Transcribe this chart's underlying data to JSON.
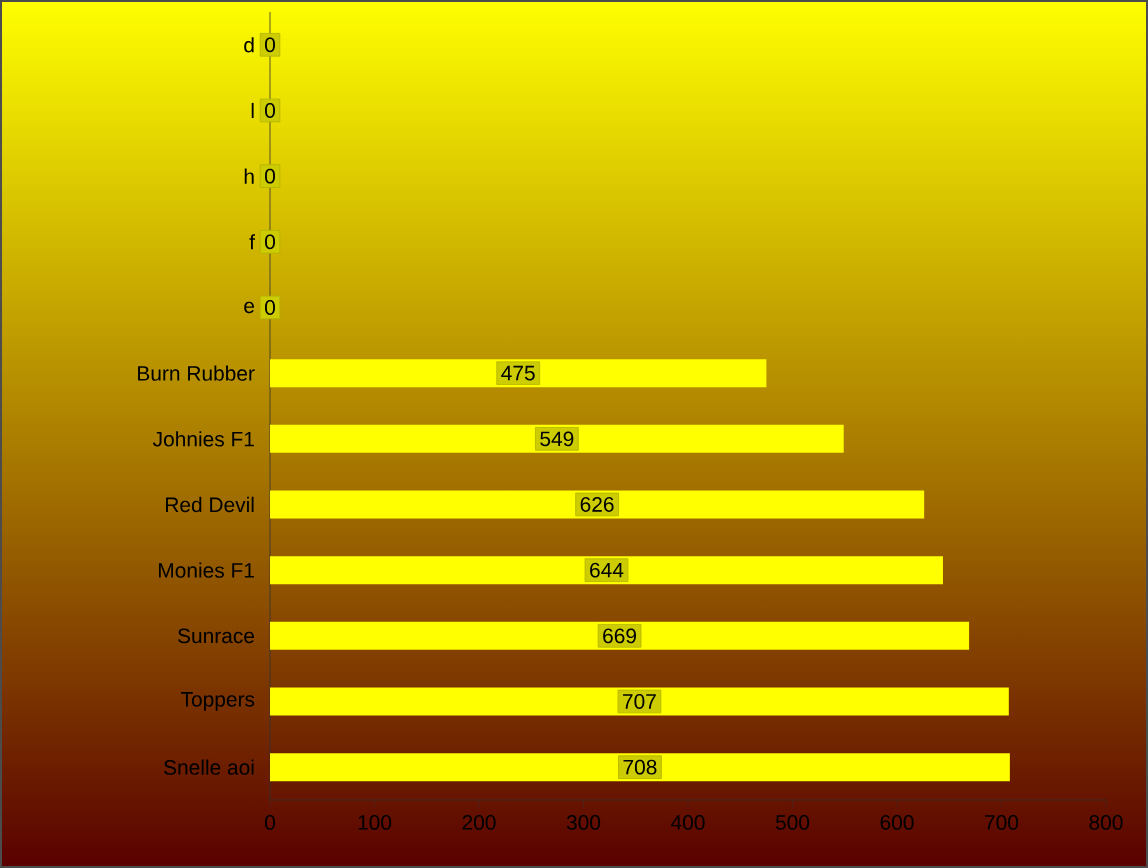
{
  "chart_data": {
    "type": "bar",
    "orientation": "horizontal",
    "categories": [
      "d",
      "l",
      "h",
      "f",
      "e",
      "Burn Rubber",
      "Johnies F1",
      "Red Devil",
      "Monies F1",
      "Sunrace",
      "Toppers",
      "Snelle aoi"
    ],
    "values": [
      0,
      0,
      0,
      0,
      0,
      475,
      549,
      626,
      644,
      669,
      707,
      708
    ],
    "color": "#ffff00",
    "xlim": [
      0,
      800
    ],
    "xticks": [
      0,
      100,
      200,
      300,
      400,
      500,
      600,
      700,
      800
    ],
    "data_labels": true
  }
}
